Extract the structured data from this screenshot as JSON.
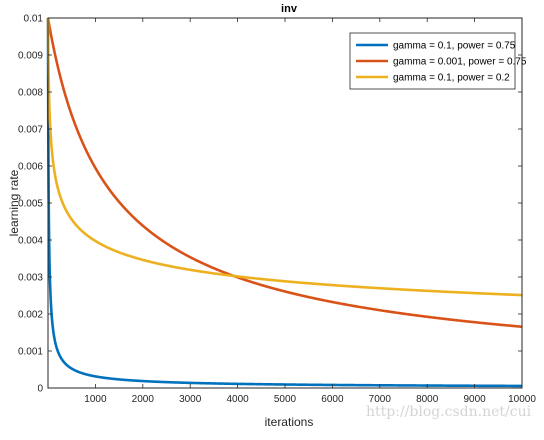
{
  "chart_data": {
    "type": "line",
    "title": "inv",
    "xlabel": "iterations",
    "ylabel": "learning rate",
    "xlim": [
      0,
      10000
    ],
    "ylim": [
      0,
      0.01
    ],
    "xticks": [
      "1000",
      "2000",
      "3000",
      "4000",
      "5000",
      "6000",
      "7000",
      "8000",
      "9000",
      "10000"
    ],
    "yticks": [
      "0",
      "0.001",
      "0.002",
      "0.003",
      "0.004",
      "0.005",
      "0.006",
      "0.007",
      "0.008",
      "0.009",
      "0.01"
    ],
    "base_lr": 0.01,
    "legend_position": "top-right",
    "grid": false,
    "series": [
      {
        "name": "gamma = 0.1, power = 0.75",
        "gamma": 0.1,
        "power": 0.75,
        "color": "#0072bd"
      },
      {
        "name": "gamma = 0.001, power = 0.75",
        "gamma": 0.001,
        "power": 0.75,
        "color": "#d95319"
      },
      {
        "name": "gamma = 0.1, power = 0.2",
        "gamma": 0.1,
        "power": 0.2,
        "color": "#edb120"
      }
    ]
  },
  "watermark": "http://blog.csdn.net/cui"
}
